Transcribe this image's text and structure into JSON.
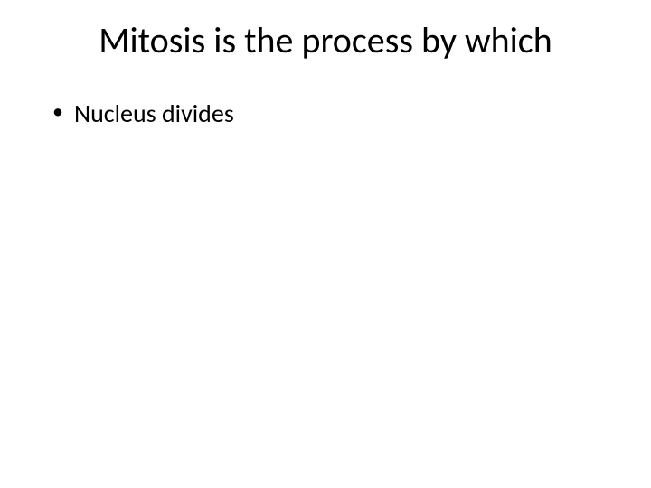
{
  "slide": {
    "title": "Mitosis is the process by which",
    "bullets": [
      "Nucleus divides"
    ],
    "style": {
      "background_color": "#ffffff",
      "text_color": "#000000",
      "title_fontsize": 40,
      "title_fontweight": 400,
      "body_fontsize": 28,
      "body_fontweight": 400,
      "font_family": "Calibri"
    }
  }
}
